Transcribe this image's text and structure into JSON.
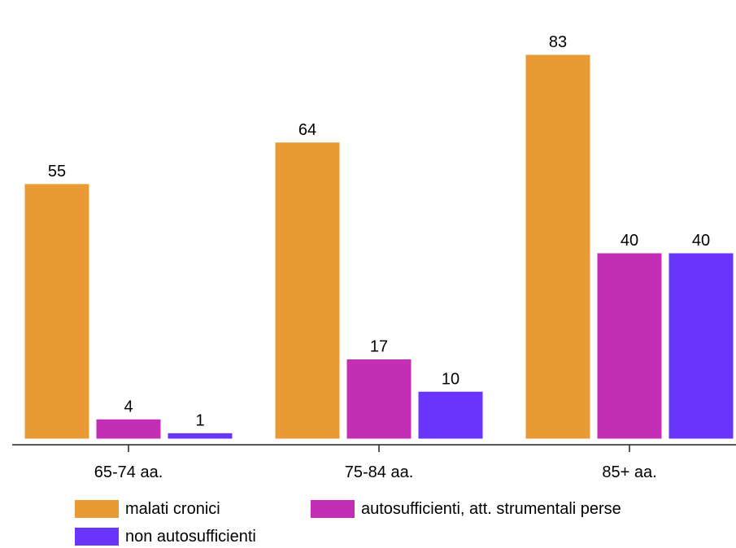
{
  "chart_data": {
    "type": "bar",
    "categories": [
      "65-74 aa.",
      "75-84 aa.",
      "85+ aa."
    ],
    "series": [
      {
        "name": "malati cronici",
        "values": [
          55,
          64,
          83
        ],
        "color": "#e89b35"
      },
      {
        "name": "autosufficienti, att. strumentali perse",
        "values": [
          4,
          17,
          40
        ],
        "color": "#c22fb4"
      },
      {
        "name": "non autosufficienti",
        "values": [
          1,
          10,
          40
        ],
        "color": "#6a35fb"
      }
    ],
    "data_labels": true,
    "grid": false,
    "ylim": [
      0,
      85
    ],
    "legend_position": "bottom"
  }
}
